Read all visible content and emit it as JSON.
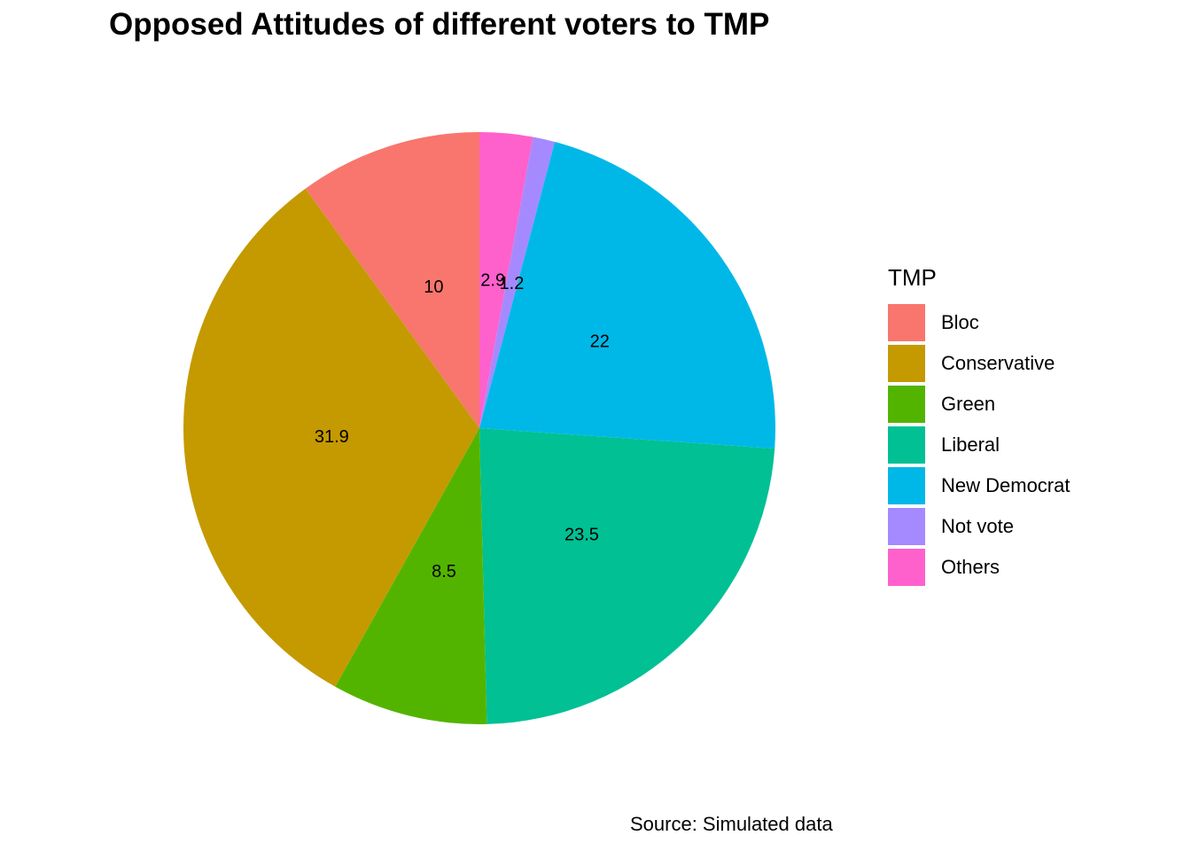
{
  "chart_data": {
    "type": "pie",
    "title": "Opposed Attitudes of different voters to TMP",
    "caption": "Source: Simulated data",
    "legend_title": "TMP",
    "legend_position": "right",
    "slices": [
      {
        "name": "Others",
        "value": 2.9,
        "label": "2.9",
        "color": "#FF61CC"
      },
      {
        "name": "Not vote",
        "value": 1.2,
        "label": "1.2",
        "color": "#A58AFF"
      },
      {
        "name": "New Democrat",
        "value": 22,
        "label": "22",
        "color": "#00B8E7"
      },
      {
        "name": "Liberal",
        "value": 23.5,
        "label": "23.5",
        "color": "#00C094"
      },
      {
        "name": "Green",
        "value": 8.5,
        "label": "8.5",
        "color": "#53B400"
      },
      {
        "name": "Conservative",
        "value": 31.9,
        "label": "31.9",
        "color": "#C49A00"
      },
      {
        "name": "Bloc",
        "value": 10,
        "label": "10",
        "color": "#F8766D"
      }
    ],
    "legend": [
      {
        "label": "Bloc",
        "color": "#F8766D"
      },
      {
        "label": "Conservative",
        "color": "#C49A00"
      },
      {
        "label": "Green",
        "color": "#53B400"
      },
      {
        "label": "Liberal",
        "color": "#00C094"
      },
      {
        "label": "New Democrat",
        "color": "#00B8E7"
      },
      {
        "label": "Not vote",
        "color": "#A58AFF"
      },
      {
        "label": "Others",
        "color": "#FF61CC"
      }
    ]
  }
}
